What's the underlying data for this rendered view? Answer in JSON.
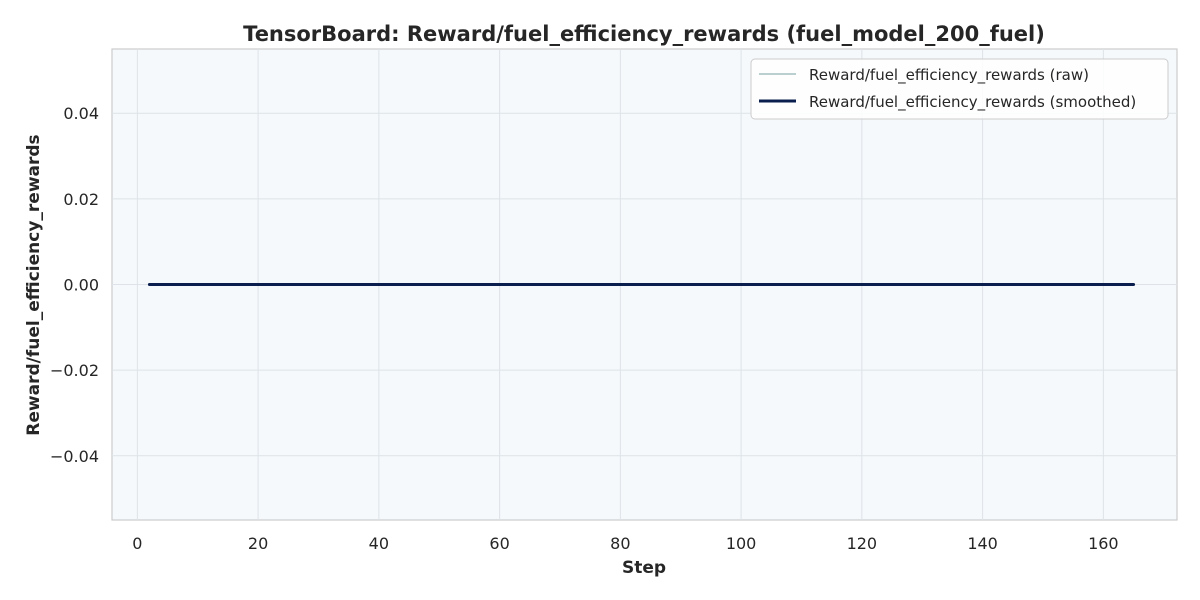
{
  "chart_data": {
    "type": "line",
    "title": "TensorBoard: Reward/fuel_efficiency_rewards (fuel_model_200_fuel)",
    "xlabel": "Step",
    "ylabel": "Reward/fuel_efficiency_rewards",
    "xlim": [
      -4.2,
      172.2
    ],
    "ylim": [
      -0.055,
      0.055
    ],
    "x_ticks": [
      0,
      20,
      40,
      60,
      80,
      100,
      120,
      140,
      160
    ],
    "x_tick_labels": [
      "0",
      "20",
      "40",
      "60",
      "80",
      "100",
      "120",
      "140",
      "160"
    ],
    "y_ticks": [
      0.04,
      0.02,
      0.0,
      -0.02,
      -0.04
    ],
    "y_tick_labels": [
      "0.04",
      "0.02",
      "0.00",
      "−0.02",
      "−0.04"
    ],
    "grid": true,
    "legend_position": "top-right",
    "background_color": "#f5f9fc",
    "series": [
      {
        "name": "Reward/fuel_efficiency_rewards (raw)",
        "color": "#a3bfbf",
        "style": "thin",
        "x": [
          2,
          165
        ],
        "y": [
          0.0,
          0.0
        ]
      },
      {
        "name": "Reward/fuel_efficiency_rewards (smoothed)",
        "color": "#0a1f4d",
        "style": "thick",
        "x": [
          2,
          165
        ],
        "y": [
          0.0,
          0.0
        ]
      }
    ]
  }
}
